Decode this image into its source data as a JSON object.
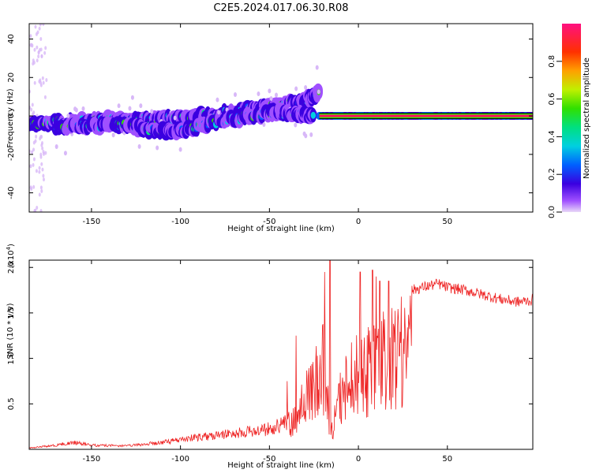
{
  "title": "C2E5.2024.017.06.30.R08",
  "chart_data": [
    {
      "type": "heatmap",
      "panel": "spectrogram",
      "xlabel": "Height of straight line (km)",
      "ylabel": "Frequency (Hz)",
      "xlim": [
        -185,
        98
      ],
      "ylim": [
        -50,
        48
      ],
      "xticks": [
        -150,
        -100,
        -50,
        0,
        50
      ],
      "yticks": [
        -40,
        -20,
        0,
        20,
        40
      ],
      "xtick_labels": [
        "-150",
        "-100",
        "-50",
        "0",
        "50"
      ],
      "ytick_labels": [
        "-40",
        "-20",
        "0",
        "20",
        "40"
      ],
      "ridges": [
        {
          "name": "upper trace",
          "x": [
            -185,
            -160,
            -140,
            -120,
            -100,
            -80,
            -60,
            -40,
            -30,
            -22
          ],
          "y": [
            -4,
            -3,
            -2,
            -2,
            -1,
            1,
            4,
            6,
            8,
            12
          ]
        },
        {
          "name": "lower trace",
          "x": [
            -170,
            -150,
            -130,
            -110,
            -100,
            -80,
            -60,
            -45,
            -35,
            -25
          ],
          "y": [
            -6,
            -5,
            -5,
            -8,
            -8,
            -3,
            0,
            2,
            1,
            0
          ]
        },
        {
          "name": "zero line",
          "x": [
            -22,
            0,
            20,
            40,
            60,
            80,
            98
          ],
          "y": [
            0,
            0,
            0,
            0,
            0,
            0,
            0
          ]
        }
      ],
      "colorbar": {
        "label": "Normalized spectral amplitude",
        "range": [
          0,
          1
        ],
        "ticks": [
          0.0,
          0.2,
          0.4,
          0.6,
          0.8
        ],
        "tick_labels": [
          "0.0",
          "0.2",
          "0.4",
          "0.6",
          "0.8"
        ]
      }
    },
    {
      "type": "line",
      "panel": "snr",
      "xlabel": "Height of straight line (km)",
      "ylabel": "SNR (10 * v/v)",
      "scale_label": "(x10",
      "scale_exponent": "4",
      "scale_suffix": ")",
      "xlim": [
        -185,
        98
      ],
      "ylim": [
        0,
        2.08
      ],
      "xticks": [
        -150,
        -100,
        -50,
        0,
        50
      ],
      "yticks": [
        0.5,
        1.0,
        1.5,
        2.0
      ],
      "xtick_labels": [
        "-150",
        "-100",
        "-50",
        "0",
        "50"
      ],
      "ytick_labels": [
        "0.5",
        "1.0",
        "1.5",
        "2.0"
      ],
      "color": "#ee2222",
      "envelope": {
        "x": [
          -185,
          -170,
          -160,
          -150,
          -130,
          -110,
          -100,
          -90,
          -80,
          -70,
          -60,
          -50,
          -40,
          -35,
          -30,
          -25,
          -20,
          -18,
          -15,
          -10,
          -5,
          0,
          10,
          20,
          25,
          30,
          40,
          45,
          50,
          60,
          70,
          80,
          90,
          98
        ],
        "y": [
          0.02,
          0.06,
          0.1,
          0.06,
          0.05,
          0.1,
          0.14,
          0.18,
          0.2,
          0.24,
          0.26,
          0.3,
          0.4,
          0.55,
          0.85,
          1.05,
          1.4,
          0.9,
          0.3,
          0.9,
          1.2,
          1.3,
          1.5,
          1.6,
          1.7,
          1.75,
          1.8,
          1.82,
          1.78,
          1.75,
          1.7,
          1.65,
          1.62,
          1.64
        ]
      },
      "spikes": [
        {
          "x": -16,
          "y": 2.08
        },
        {
          "x": -19,
          "y": 1.95
        },
        {
          "x": 1,
          "y": 1.95
        },
        {
          "x": 8,
          "y": 1.97
        },
        {
          "x": 10,
          "y": 1.9
        },
        {
          "x": 12,
          "y": 1.85
        },
        {
          "x": 17,
          "y": 1.85
        },
        {
          "x": -35,
          "y": 1.25
        },
        {
          "x": -40,
          "y": 0.75
        }
      ]
    }
  ]
}
